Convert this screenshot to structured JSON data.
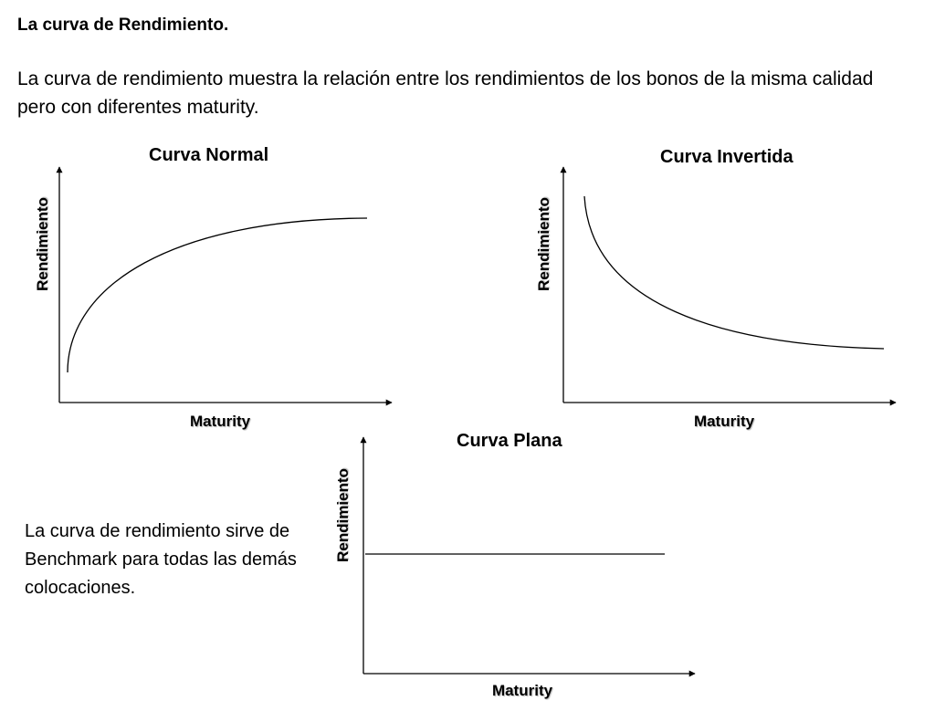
{
  "slide": {
    "title": "La curva de Rendimiento.",
    "intro": "La curva de rendimiento muestra la relación entre los rendimientos de los bonos de la misma calidad  pero con diferentes maturity.",
    "note": "La curva de rendimiento sirve de Benchmark para todas las demás colocaciones."
  },
  "chart_data": [
    {
      "type": "line",
      "title": "Curva Normal",
      "xlabel": "Maturity",
      "ylabel": "Rendimiento",
      "shape": "increasing-concave",
      "grid": false,
      "ticks": false
    },
    {
      "type": "line",
      "title": "Curva Invertida",
      "xlabel": "Maturity",
      "ylabel": "Rendimiento",
      "shape": "decreasing-convex",
      "grid": false,
      "ticks": false
    },
    {
      "type": "line",
      "title": "Curva Plana",
      "xlabel": "Maturity",
      "ylabel": "Rendimiento",
      "shape": "flat",
      "grid": false,
      "ticks": false
    }
  ]
}
